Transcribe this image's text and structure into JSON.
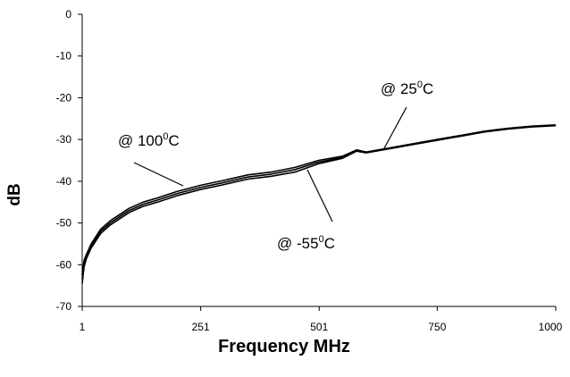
{
  "chart_data": {
    "type": "line",
    "xlabel": "Frequency MHz",
    "ylabel": "dB",
    "xlim": [
      1,
      1000
    ],
    "ylim": [
      -70,
      0
    ],
    "x_ticks": [
      "1",
      "251",
      "501",
      "750",
      "1000"
    ],
    "y_ticks": [
      "0",
      "-10",
      "-20",
      "-30",
      "-40",
      "-50",
      "-60",
      "-70"
    ],
    "grid": false,
    "series": [
      {
        "x": [
          1,
          5,
          10,
          20,
          40,
          60,
          80,
          100,
          130,
          160,
          200,
          250,
          300,
          350,
          400,
          450,
          500,
          550,
          580,
          600,
          650,
          700,
          750,
          800,
          850,
          900,
          950,
          1000
        ],
        "y": [
          -62.5,
          -59,
          -57.5,
          -55,
          -51.5,
          -49.5,
          -48,
          -46.5,
          -45,
          -44,
          -42.5,
          -41,
          -39.8,
          -38.5,
          -37.8,
          -36.7,
          -35,
          -34,
          -32.5,
          -33,
          -32,
          -31,
          -30,
          -29,
          -28,
          -27.3,
          -26.8,
          -26.5
        ]
      },
      {
        "x": [
          1,
          5,
          10,
          20,
          40,
          60,
          80,
          100,
          130,
          160,
          200,
          250,
          300,
          350,
          400,
          450,
          500,
          550,
          580,
          600,
          650,
          700,
          750,
          800,
          850,
          900,
          950,
          1000
        ],
        "y": [
          -64.5,
          -60.5,
          -58.5,
          -56,
          -52.5,
          -50.5,
          -49,
          -47.5,
          -46,
          -45,
          -43.5,
          -42,
          -40.8,
          -39.5,
          -38.8,
          -37.8,
          -35.8,
          -34.5,
          -32.8,
          -33.2,
          -32.2,
          -31.2,
          -30.2,
          -29.2,
          -28.2,
          -27.5,
          -27,
          -26.7
        ]
      },
      {
        "x": [
          1,
          5,
          10,
          20,
          40,
          60,
          80,
          100,
          130,
          160,
          200,
          250,
          300,
          350,
          400,
          450,
          500,
          550,
          580,
          600,
          650,
          700,
          750,
          800,
          850,
          900,
          950,
          1000
        ],
        "y": [
          -63.5,
          -59.8,
          -58,
          -55.5,
          -52,
          -50,
          -48.5,
          -47,
          -45.5,
          -44.5,
          -43,
          -41.5,
          -40.3,
          -39,
          -38.3,
          -37.2,
          -35.4,
          -34.3,
          -32.6,
          -33.1,
          -32.1,
          -31.1,
          -30.1,
          -29.1,
          -28.1,
          -27.4,
          -26.9,
          -26.6
        ]
      }
    ],
    "annotations": [
      {
        "pre": "@  100",
        "sup": "0",
        "post": "C",
        "target_x": 205,
        "target_y": -40.5
      },
      {
        "pre": "@  25",
        "sup": "0",
        "post": "C",
        "target_x": 630,
        "target_y": -32.5
      },
      {
        "pre": "@  -55",
        "sup": "0",
        "post": "C",
        "target_x": 480,
        "target_y": -36.5
      }
    ]
  }
}
